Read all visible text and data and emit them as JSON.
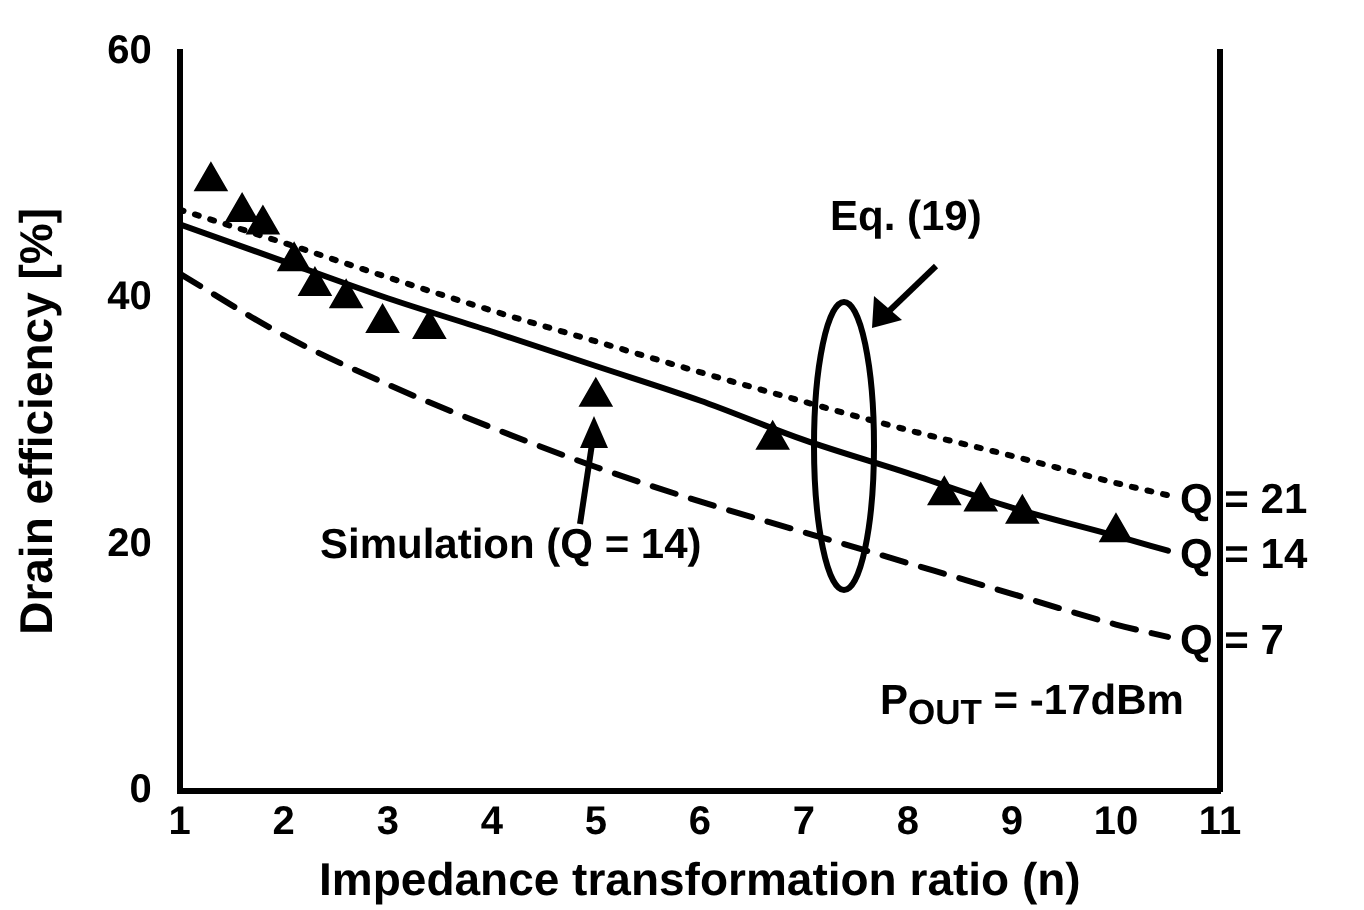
{
  "chart_data": {
    "type": "line",
    "xlabel": "Impedance transformation ratio (n)",
    "ylabel": "Drain efficiency [%]",
    "xlim": [
      1,
      11
    ],
    "xticks": [
      1,
      2,
      3,
      4,
      5,
      6,
      7,
      8,
      9,
      10,
      11
    ],
    "ylim": [
      0,
      60
    ],
    "yticks": [
      0,
      20,
      40,
      60
    ],
    "grid": false,
    "legend": false,
    "annotations": [
      "Eq. (19)",
      "Simulation (Q = 14)",
      "P$_{OUT}$ = -17dBm"
    ],
    "series": [
      {
        "name": "Q = 21",
        "color": "#000000",
        "line_style": "dotted",
        "marker": "none",
        "x": [
          1,
          2,
          3,
          4,
          5,
          6,
          7,
          8,
          9,
          10,
          10.5
        ],
        "values": [
          47.2,
          44.5,
          41.7,
          39,
          36.5,
          34,
          31.6,
          29.3,
          27.2,
          25,
          24
        ]
      },
      {
        "name": "Q = 14",
        "color": "#000000",
        "line_style": "solid",
        "marker": "none",
        "x": [
          1,
          2,
          3,
          4,
          5,
          6,
          7,
          8,
          9,
          10,
          10.5
        ],
        "values": [
          46,
          43,
          40,
          37.3,
          34.5,
          31.7,
          28.5,
          25.8,
          23,
          20.7,
          19.5
        ]
      },
      {
        "name": "Q = 7",
        "color": "#000000",
        "line_style": "dashed",
        "marker": "none",
        "x": [
          1,
          2,
          3,
          4,
          5,
          6,
          7,
          8,
          9,
          10,
          10.5
        ],
        "values": [
          42,
          37,
          33,
          29.5,
          26.3,
          23.5,
          21,
          18.5,
          16,
          13.5,
          12.5
        ]
      },
      {
        "type": "scatter",
        "color": "#000000",
        "marker": "triangle",
        "x": [
          1.3,
          1.6,
          1.8,
          2.1,
          2.3,
          2.6,
          2.95,
          3.4,
          5,
          6.7,
          8.35,
          8.7,
          9.1,
          10
        ],
        "values": [
          49.5,
          47,
          46,
          43,
          41,
          40,
          38,
          37.5,
          32,
          28.5,
          24,
          23.5,
          22.5,
          21
        ]
      }
    ]
  }
}
